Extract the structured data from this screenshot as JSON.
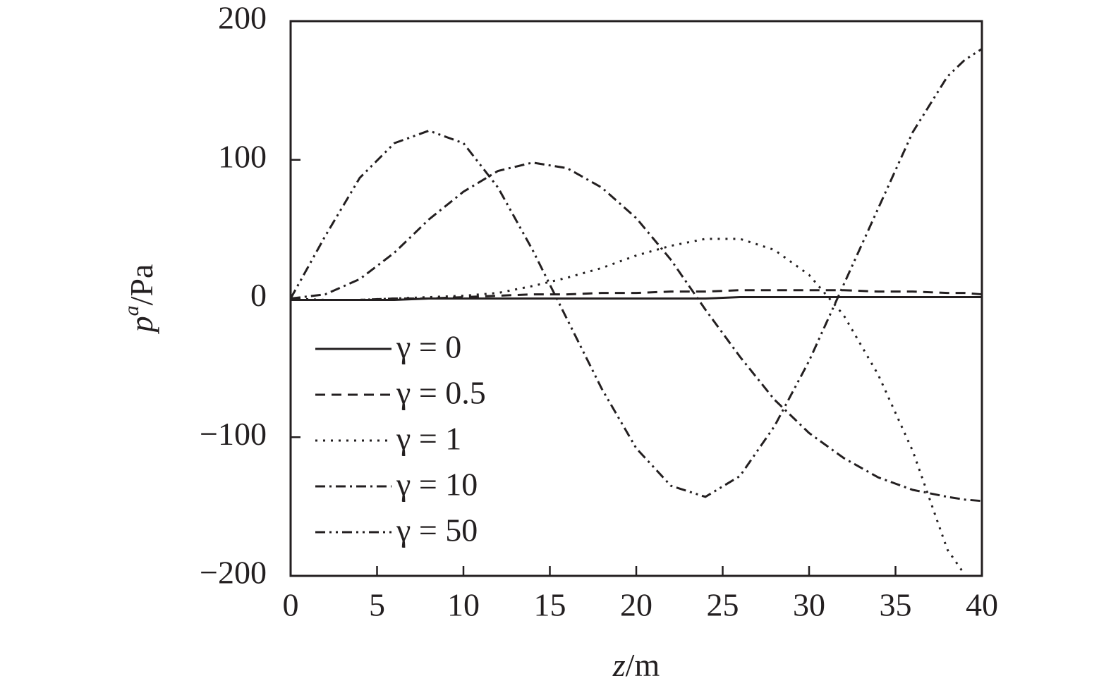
{
  "chart_data": {
    "type": "line",
    "x_label": [
      "z",
      "/m"
    ],
    "y_label": [
      "p",
      "a",
      "/Pa"
    ],
    "x": [
      0,
      2,
      4,
      6,
      8,
      10,
      12,
      14,
      16,
      18,
      20,
      22,
      24,
      26,
      28,
      30,
      32,
      34,
      36,
      38,
      39,
      40
    ],
    "series": [
      {
        "name": "γ = 0",
        "color": "#231f20",
        "dash": "none",
        "values": [
          -1,
          -1,
          -1,
          -1,
          0,
          0,
          0,
          0,
          0,
          0,
          0,
          0,
          0,
          1,
          1,
          1,
          1,
          1,
          1,
          1,
          1,
          1
        ]
      },
      {
        "name": "γ = 0.5",
        "color": "#231f20",
        "dash": "14 9",
        "values": [
          -1,
          -1,
          -1,
          0,
          0,
          1,
          2,
          3,
          3,
          4,
          4,
          5,
          5,
          6,
          6,
          6,
          6,
          5,
          5,
          4,
          4,
          3
        ]
      },
      {
        "name": "γ = 1",
        "color": "#231f20",
        "dash": "3 8",
        "values": [
          0,
          -1,
          -1,
          0,
          1,
          2,
          4,
          9,
          15,
          22,
          31,
          38,
          43,
          43,
          35,
          17,
          -12,
          -55,
          -110,
          -181,
          -199,
          null
        ]
      },
      {
        "name": "γ = 10",
        "color": "#231f20",
        "dash": "14 6 3 6",
        "values": [
          0,
          3,
          14,
          33,
          57,
          77,
          92,
          98,
          94,
          80,
          58,
          28,
          -8,
          -42,
          -73,
          -97,
          -115,
          -129,
          -138,
          -143,
          -145,
          -146
        ]
      },
      {
        "name": "γ = 50",
        "color": "#231f20",
        "dash": "14 6 3 6 3 6",
        "values": [
          0,
          45,
          87,
          112,
          121,
          112,
          80,
          35,
          -15,
          -65,
          -108,
          -135,
          -143,
          -128,
          -92,
          -45,
          10,
          65,
          120,
          160,
          172,
          180
        ]
      }
    ],
    "xlim": [
      0,
      40
    ],
    "xticks": [
      0,
      5,
      10,
      15,
      20,
      25,
      30,
      35,
      40
    ],
    "ylim": [
      -200,
      200
    ],
    "yticks": [
      {
        "value": -200,
        "label": "−200"
      },
      {
        "value": -100,
        "label": "−100"
      },
      0,
      100,
      200
    ]
  }
}
